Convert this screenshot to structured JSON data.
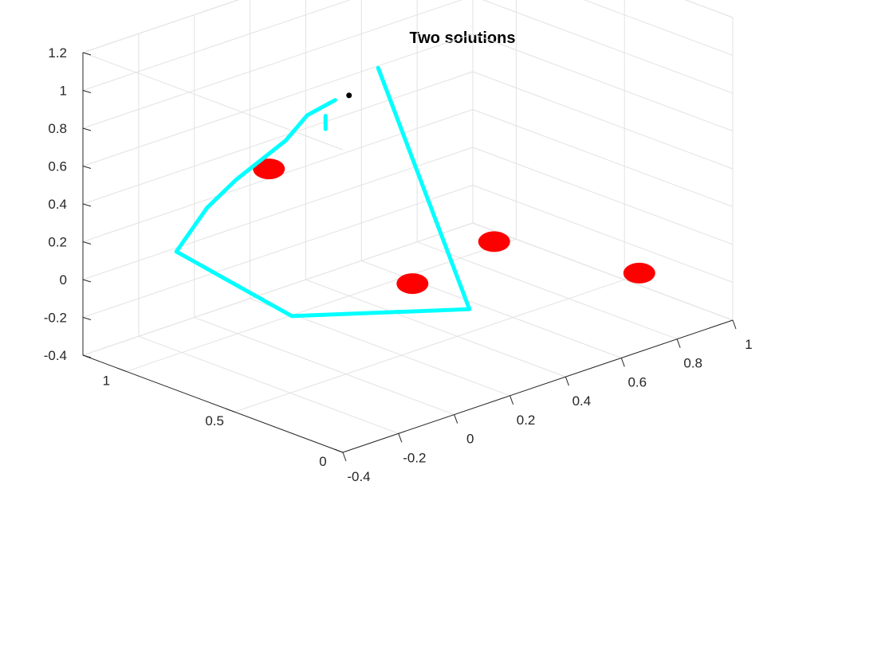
{
  "chart_data": {
    "type": "line3d",
    "title": "Two solutions",
    "grid": true,
    "ticks": {
      "x": [
        {
          "v": -0.4,
          "label": "-0.4"
        },
        {
          "v": -0.2,
          "label": "-0.2"
        },
        {
          "v": 0,
          "label": "0"
        },
        {
          "v": 0.2,
          "label": "0.2"
        },
        {
          "v": 0.4,
          "label": "0.4"
        },
        {
          "v": 0.6,
          "label": "0.6"
        },
        {
          "v": 0.8,
          "label": "0.8"
        },
        {
          "v": 1,
          "label": "1"
        }
      ],
      "y": [
        {
          "v": 0,
          "label": "0"
        },
        {
          "v": 0.5,
          "label": "0.5"
        },
        {
          "v": 1,
          "label": "1"
        }
      ],
      "z": [
        {
          "v": -0.4,
          "label": "-0.4"
        },
        {
          "v": -0.2,
          "label": "-0.2"
        },
        {
          "v": 0,
          "label": "0"
        },
        {
          "v": 0.2,
          "label": "0.2"
        },
        {
          "v": 0.4,
          "label": "0.4"
        },
        {
          "v": 0.6,
          "label": "0.6"
        },
        {
          "v": 0.8,
          "label": "0.8"
        },
        {
          "v": 1,
          "label": "1"
        },
        {
          "v": 1.2,
          "label": "1.2"
        }
      ]
    },
    "series": [
      {
        "color": "#00FFFF",
        "points": [
          [
            0.66,
            1.2,
            0.59
          ],
          [
            0.35,
            0.38,
            -0.18
          ],
          [
            0.0,
            0.75,
            -0.2
          ],
          [
            -0.15,
            1.09,
            0.07
          ],
          [
            -0.11,
            1.0,
            0.32
          ],
          [
            -0.03,
            0.97,
            0.44
          ],
          [
            0.15,
            0.97,
            0.56
          ],
          [
            0.25,
            1.0,
            0.63
          ],
          [
            0.35,
            1.0,
            0.66
          ]
        ]
      },
      {
        "color": "#00FFFF",
        "points": [
          [
            0.3,
            0.98,
            0.61
          ],
          [
            0.3,
            0.98,
            0.54
          ]
        ]
      }
    ],
    "markers": [
      {
        "color": "#FF0000",
        "x": 0.05,
        "y": 0.92,
        "z": 0.48
      },
      {
        "color": "#FF0000",
        "x": 0.2,
        "y": 0.45,
        "z": 0.0
      },
      {
        "color": "#FF0000",
        "x": 0.47,
        "y": 0.42,
        "z": 0.1
      },
      {
        "color": "#FF0000",
        "x": 0.68,
        "y": 0.02,
        "z": 0.0
      }
    ],
    "end_point": {
      "color": "#000000",
      "x": 0.4,
      "y": 1.0,
      "z": 0.66
    }
  }
}
